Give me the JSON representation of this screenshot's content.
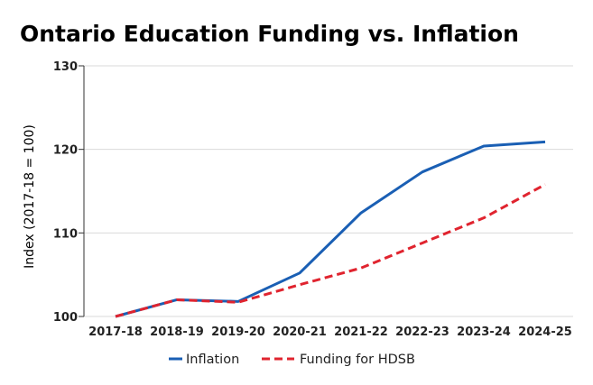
{
  "chart_data": {
    "type": "line",
    "title": "Ontario Education Funding vs. Inflation",
    "xlabel": "",
    "ylabel": "Index (2017-18 = 100)",
    "categories": [
      "2017-18",
      "2018-19",
      "2019-20",
      "2020-21",
      "2021-22",
      "2022-23",
      "2023-24",
      "2024-25"
    ],
    "ylim": [
      100,
      130
    ],
    "yticks": [
      100,
      110,
      120,
      130
    ],
    "grid": true,
    "legend_position": "bottom",
    "series": [
      {
        "name": "Inflation",
        "color": "#1a5fb4",
        "style": "solid",
        "values": [
          100.0,
          102.0,
          101.8,
          105.2,
          112.4,
          117.3,
          120.4,
          120.9
        ]
      },
      {
        "name": "Funding for HDSB",
        "color": "#e0242f",
        "style": "dashed",
        "values": [
          100.0,
          102.0,
          101.7,
          103.8,
          105.8,
          108.8,
          111.8,
          115.8
        ]
      }
    ]
  }
}
